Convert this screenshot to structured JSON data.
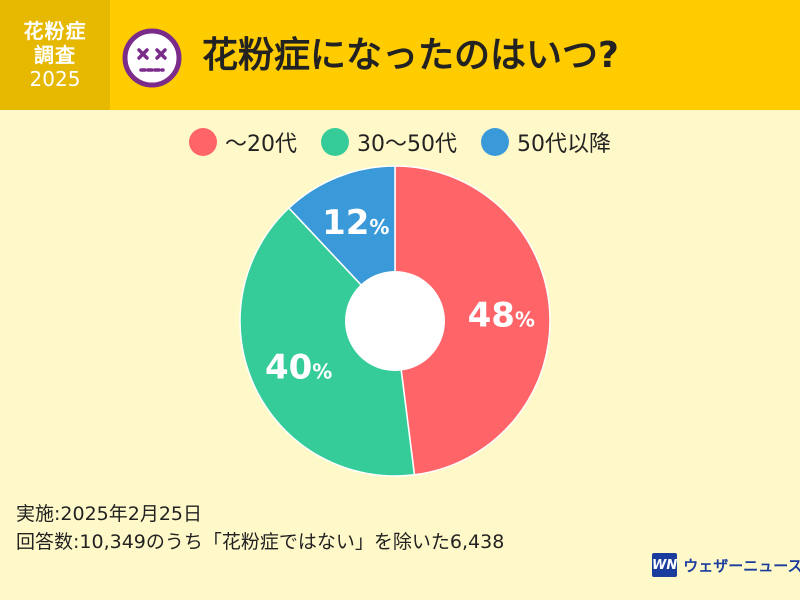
{
  "header": {
    "tag_line1": "花粉症",
    "tag_line2": "調査",
    "tag_line3": "2025",
    "title": "花粉症になったのはいつ?"
  },
  "icons": {
    "face": "dizzy-face-icon",
    "logo": "weathernews-logo-icon"
  },
  "colors": {
    "header_bg": "#FFCC00",
    "tag_bg": "#E6B800",
    "background": "#FFF9C9",
    "face_purple": "#7B2C8B"
  },
  "chart_data": {
    "type": "pie",
    "donut": true,
    "title": "",
    "legend_position": "top",
    "unit": "%",
    "slices": [
      {
        "label": "〜20代",
        "value": 48,
        "color": "#FF6468"
      },
      {
        "label": "30〜50代",
        "value": 40,
        "color": "#36CC99"
      },
      {
        "label": "50代以降",
        "value": 12,
        "color": "#3A9AD9"
      }
    ]
  },
  "footer": {
    "line1": "実施:2025年2月25日",
    "line2": "回答数:10,349のうち「花粉症ではない」を除いた6,438"
  },
  "logo": {
    "mark": "WN",
    "text": "ウェザーニュース"
  }
}
